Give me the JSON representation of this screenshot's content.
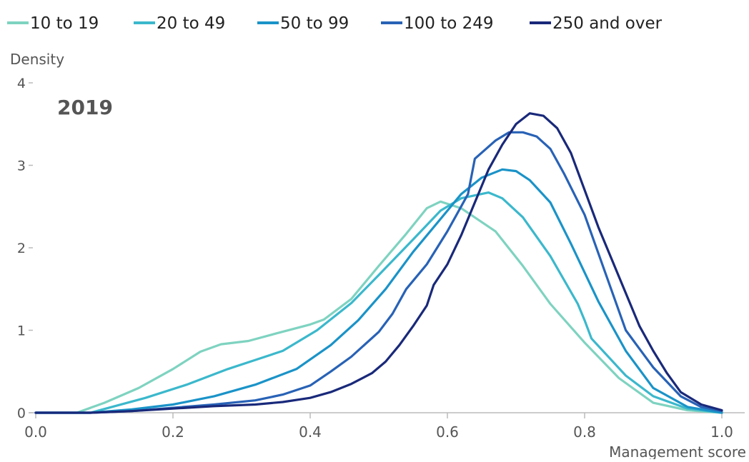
{
  "chart_data": {
    "type": "line",
    "title": "",
    "panel_label": "2019",
    "xlabel": "Management score",
    "ylabel": "Density",
    "xlim": [
      0,
      1.0
    ],
    "ylim": [
      0,
      4
    ],
    "x_ticks": [
      0.0,
      0.2,
      0.4,
      0.6,
      0.8,
      1.0
    ],
    "x_tick_labels": [
      "0.0",
      "0.2",
      "0.4",
      "0.6",
      "0.8",
      "1.0"
    ],
    "y_ticks": [
      0,
      1,
      2,
      3,
      4
    ],
    "y_tick_labels": [
      "0",
      "1",
      "2",
      "3",
      "4"
    ],
    "grid": false,
    "legend_position": "top",
    "series": [
      {
        "name": "10 to 19",
        "color": "#7ed3c0",
        "points": [
          [
            0.0,
            0.0
          ],
          [
            0.06,
            0.0
          ],
          [
            0.1,
            0.12
          ],
          [
            0.15,
            0.3
          ],
          [
            0.2,
            0.53
          ],
          [
            0.24,
            0.74
          ],
          [
            0.27,
            0.83
          ],
          [
            0.31,
            0.87
          ],
          [
            0.35,
            0.96
          ],
          [
            0.4,
            1.07
          ],
          [
            0.42,
            1.13
          ],
          [
            0.46,
            1.38
          ],
          [
            0.5,
            1.78
          ],
          [
            0.54,
            2.17
          ],
          [
            0.57,
            2.48
          ],
          [
            0.59,
            2.56
          ],
          [
            0.62,
            2.48
          ],
          [
            0.67,
            2.2
          ],
          [
            0.71,
            1.78
          ],
          [
            0.75,
            1.32
          ],
          [
            0.8,
            0.85
          ],
          [
            0.85,
            0.42
          ],
          [
            0.9,
            0.12
          ],
          [
            0.95,
            0.03
          ],
          [
            1.0,
            0.0
          ]
        ]
      },
      {
        "name": "20 to 49",
        "color": "#3bb8cc",
        "points": [
          [
            0.0,
            0.0
          ],
          [
            0.08,
            0.0
          ],
          [
            0.12,
            0.09
          ],
          [
            0.16,
            0.18
          ],
          [
            0.22,
            0.34
          ],
          [
            0.28,
            0.53
          ],
          [
            0.32,
            0.64
          ],
          [
            0.36,
            0.75
          ],
          [
            0.41,
            1.0
          ],
          [
            0.46,
            1.33
          ],
          [
            0.5,
            1.67
          ],
          [
            0.55,
            2.1
          ],
          [
            0.59,
            2.45
          ],
          [
            0.62,
            2.6
          ],
          [
            0.66,
            2.67
          ],
          [
            0.68,
            2.6
          ],
          [
            0.71,
            2.37
          ],
          [
            0.75,
            1.9
          ],
          [
            0.79,
            1.32
          ],
          [
            0.8,
            1.12
          ],
          [
            0.81,
            0.9
          ],
          [
            0.86,
            0.45
          ],
          [
            0.9,
            0.2
          ],
          [
            0.95,
            0.05
          ],
          [
            1.0,
            0.0
          ]
        ]
      },
      {
        "name": "50 to 99",
        "color": "#1a93c8",
        "points": [
          [
            0.0,
            0.0
          ],
          [
            0.08,
            0.0
          ],
          [
            0.14,
            0.04
          ],
          [
            0.2,
            0.1
          ],
          [
            0.26,
            0.2
          ],
          [
            0.32,
            0.34
          ],
          [
            0.38,
            0.53
          ],
          [
            0.43,
            0.82
          ],
          [
            0.47,
            1.12
          ],
          [
            0.51,
            1.5
          ],
          [
            0.55,
            1.95
          ],
          [
            0.59,
            2.35
          ],
          [
            0.62,
            2.65
          ],
          [
            0.65,
            2.85
          ],
          [
            0.68,
            2.95
          ],
          [
            0.7,
            2.93
          ],
          [
            0.72,
            2.82
          ],
          [
            0.75,
            2.55
          ],
          [
            0.78,
            2.05
          ],
          [
            0.82,
            1.35
          ],
          [
            0.86,
            0.75
          ],
          [
            0.9,
            0.3
          ],
          [
            0.95,
            0.07
          ],
          [
            1.0,
            0.0
          ]
        ]
      },
      {
        "name": "100 to 249",
        "color": "#2862b6",
        "points": [
          [
            0.0,
            0.0
          ],
          [
            0.08,
            0.0
          ],
          [
            0.14,
            0.02
          ],
          [
            0.2,
            0.06
          ],
          [
            0.26,
            0.1
          ],
          [
            0.32,
            0.15
          ],
          [
            0.36,
            0.22
          ],
          [
            0.4,
            0.33
          ],
          [
            0.43,
            0.5
          ],
          [
            0.46,
            0.68
          ],
          [
            0.5,
            0.98
          ],
          [
            0.52,
            1.2
          ],
          [
            0.54,
            1.5
          ],
          [
            0.57,
            1.8
          ],
          [
            0.6,
            2.2
          ],
          [
            0.63,
            2.65
          ],
          [
            0.64,
            3.08
          ],
          [
            0.67,
            3.3
          ],
          [
            0.69,
            3.4
          ],
          [
            0.71,
            3.4
          ],
          [
            0.73,
            3.35
          ],
          [
            0.75,
            3.2
          ],
          [
            0.77,
            2.9
          ],
          [
            0.8,
            2.4
          ],
          [
            0.83,
            1.7
          ],
          [
            0.86,
            1.0
          ],
          [
            0.9,
            0.55
          ],
          [
            0.94,
            0.2
          ],
          [
            0.97,
            0.07
          ],
          [
            1.0,
            0.02
          ]
        ]
      },
      {
        "name": "250 and over",
        "color": "#19297a",
        "points": [
          [
            0.0,
            0.0
          ],
          [
            0.08,
            0.0
          ],
          [
            0.14,
            0.02
          ],
          [
            0.2,
            0.05
          ],
          [
            0.26,
            0.08
          ],
          [
            0.32,
            0.1
          ],
          [
            0.36,
            0.13
          ],
          [
            0.4,
            0.18
          ],
          [
            0.43,
            0.25
          ],
          [
            0.46,
            0.35
          ],
          [
            0.49,
            0.48
          ],
          [
            0.51,
            0.62
          ],
          [
            0.53,
            0.82
          ],
          [
            0.55,
            1.05
          ],
          [
            0.57,
            1.3
          ],
          [
            0.58,
            1.55
          ],
          [
            0.6,
            1.8
          ],
          [
            0.62,
            2.15
          ],
          [
            0.64,
            2.55
          ],
          [
            0.66,
            2.95
          ],
          [
            0.68,
            3.25
          ],
          [
            0.7,
            3.5
          ],
          [
            0.72,
            3.63
          ],
          [
            0.74,
            3.6
          ],
          [
            0.76,
            3.45
          ],
          [
            0.78,
            3.15
          ],
          [
            0.8,
            2.7
          ],
          [
            0.82,
            2.25
          ],
          [
            0.84,
            1.85
          ],
          [
            0.86,
            1.45
          ],
          [
            0.88,
            1.05
          ],
          [
            0.9,
            0.75
          ],
          [
            0.92,
            0.48
          ],
          [
            0.94,
            0.25
          ],
          [
            0.97,
            0.1
          ],
          [
            1.0,
            0.03
          ]
        ]
      }
    ]
  }
}
